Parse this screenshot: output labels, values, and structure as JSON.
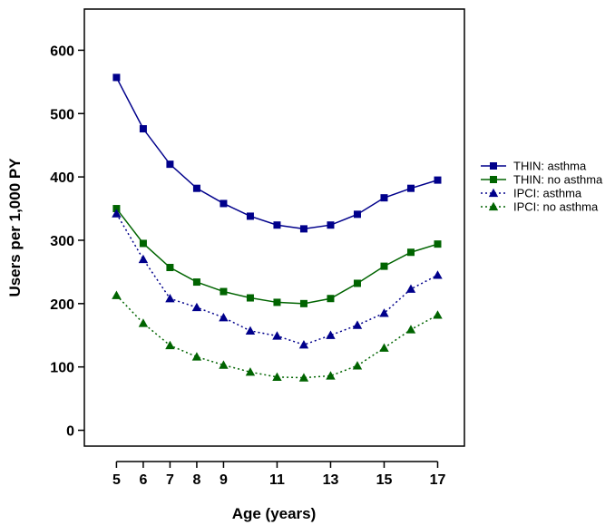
{
  "chart_data": {
    "type": "line",
    "xlabel": "Age (years)",
    "ylabel": "Users per 1,000 PY",
    "x": [
      5,
      6,
      7,
      8,
      9,
      10,
      11,
      12,
      13,
      14,
      15,
      16,
      17
    ],
    "xticks": [
      5,
      6,
      7,
      8,
      9,
      11,
      13,
      15,
      17
    ],
    "yticks": [
      0,
      100,
      200,
      300,
      400,
      500,
      600
    ],
    "xlim": [
      3.8,
      18.0
    ],
    "ylim": [
      -25,
      665
    ],
    "grid": false,
    "legend_position": "right",
    "series": [
      {
        "name": "THIN: asthma",
        "color": "#00008B",
        "marker": "square",
        "line": "solid",
        "values": [
          557,
          476,
          420,
          382,
          358,
          338,
          324,
          318,
          324,
          341,
          367,
          382,
          395
        ]
      },
      {
        "name": "THIN: no asthma",
        "color": "#006400",
        "marker": "square",
        "line": "solid",
        "values": [
          350,
          295,
          257,
          234,
          219,
          209,
          202,
          200,
          208,
          232,
          259,
          281,
          294
        ]
      },
      {
        "name": "IPCI: asthma",
        "color": "#00008B",
        "marker": "triangle",
        "line": "dotted",
        "values": [
          342,
          270,
          208,
          194,
          178,
          157,
          149,
          135,
          150,
          166,
          185,
          223,
          245
        ]
      },
      {
        "name": "IPCI: no asthma",
        "color": "#006400",
        "marker": "triangle",
        "line": "dotted",
        "values": [
          213,
          169,
          134,
          116,
          103,
          92,
          84,
          83,
          86,
          102,
          130,
          159,
          182
        ]
      }
    ]
  }
}
